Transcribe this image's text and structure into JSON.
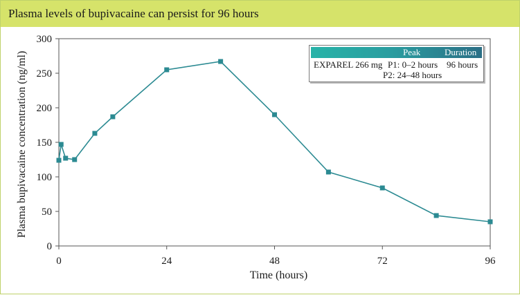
{
  "title": "Plasma levels of bupivacaine can persist for 96 hours",
  "legend": {
    "header_peak": "Peak",
    "header_duration": "Duration",
    "row_label": "EXPAREL 266 mg",
    "peak_line1": "P1: 0–2 hours",
    "peak_line2": "P2: 24–48 hours",
    "duration": "96 hours"
  },
  "colors": {
    "title_bar": "#d6e36a",
    "series": "#2b8a92",
    "legend_header_start": "#28b3a8",
    "legend_header_end": "#2b6f86"
  },
  "chart_data": {
    "type": "line",
    "xlabel": "Time (hours)",
    "ylabel": "Plasma bupivacaine concentration (ng/ml)",
    "xlim": [
      0,
      96
    ],
    "ylim": [
      0,
      300
    ],
    "xticks": [
      0,
      24,
      48,
      72,
      96
    ],
    "yticks": [
      0,
      50,
      100,
      150,
      200,
      250,
      300
    ],
    "grid": false,
    "series": [
      {
        "marker": "square",
        "x": [
          0,
          0.5,
          1.5,
          3.5,
          8,
          12,
          24,
          36,
          48,
          60,
          72,
          84,
          96
        ],
        "y": [
          124,
          147,
          127,
          125,
          163,
          187,
          255,
          267,
          190,
          107,
          84,
          44,
          35
        ]
      }
    ]
  }
}
